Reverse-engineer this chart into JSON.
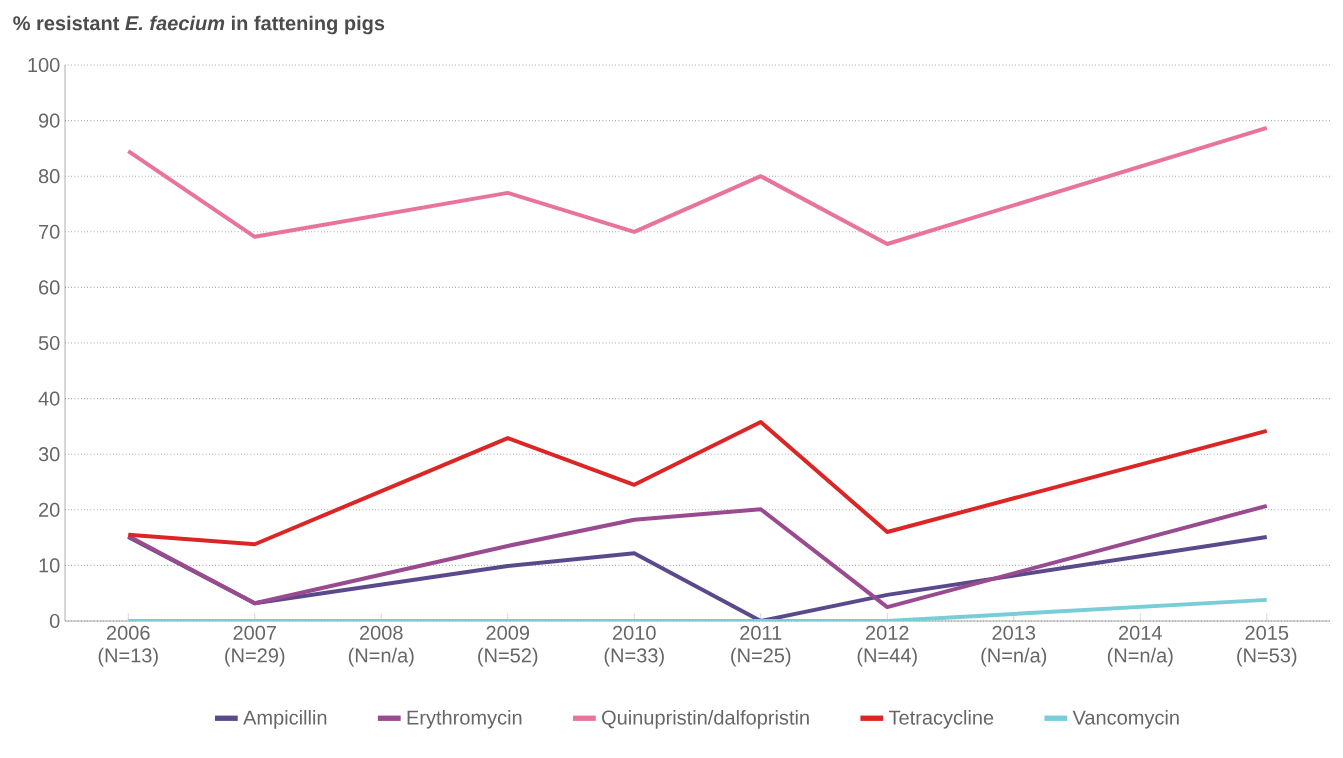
{
  "chart_data": {
    "type": "line",
    "title": "**% resistant *E. faecium* in fattening pigs**",
    "categories": [
      "2006 (N=13)",
      "2007 (N=29)",
      "2008 (N=n/a)",
      "2009 (N=52)",
      "2010 (N=33)",
      "2011 (N=25)",
      "2012 (N=44)",
      "2013 (N=n/a)",
      "2014 (N=n/a)",
      "2015 (N=53)"
    ],
    "series": [
      {
        "name": "Ampicillin",
        "color": "#5b4a8b",
        "values": [
          15.1,
          3.2,
          null,
          9.9,
          12.2,
          0,
          4.7,
          null,
          null,
          15.1
        ]
      },
      {
        "name": "Erythromycin",
        "color": "#9a4a8e",
        "values": [
          15.3,
          3.2,
          null,
          13.5,
          18.2,
          20.1,
          2.5,
          null,
          null,
          20.7
        ]
      },
      {
        "name": "Quinupristin/dalfopristin",
        "color": "#e8749a",
        "values": [
          84.5,
          69.1,
          null,
          77,
          70,
          80,
          67.8,
          null,
          null,
          88.7
        ]
      },
      {
        "name": "Tetracycline",
        "color": "#dc2626",
        "values": [
          15.5,
          13.8,
          null,
          32.9,
          24.5,
          35.8,
          16,
          null,
          null,
          34.2
        ]
      },
      {
        "name": "Vancomycin",
        "color": "#78cdd6",
        "values": [
          0,
          0,
          null,
          0,
          0,
          0,
          0,
          null,
          null,
          3.8
        ]
      }
    ],
    "ylim": [
      0,
      100
    ],
    "yticks": [
      0,
      10,
      20,
      30,
      40,
      50,
      60,
      70,
      80,
      90,
      100
    ],
    "grid": "y",
    "legend": "bottom",
    "marker": "none",
    "line_style": "solid"
  }
}
